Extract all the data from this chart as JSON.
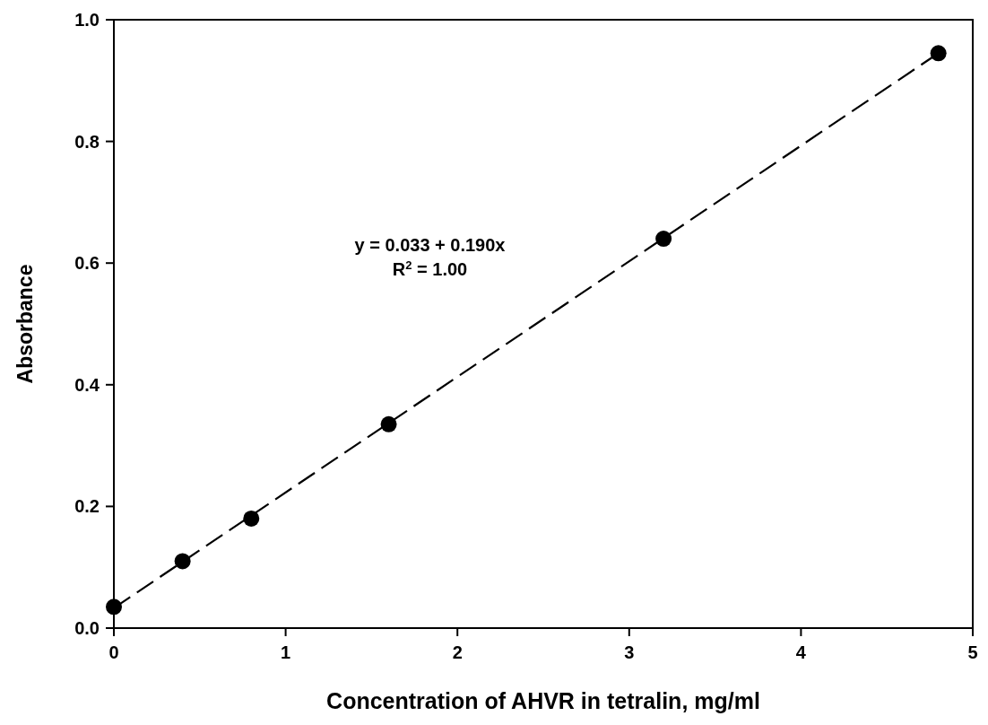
{
  "chart_data": {
    "type": "scatter",
    "xlabel": "Concentration of AHVR in tetralin, mg/ml",
    "ylabel": "Absorbance",
    "annotations": [
      "y = 0.033 + 0.190x",
      "R$^{2}$ = 1.00"
    ],
    "series": [
      {
        "color": "#000000",
        "marker": "circle",
        "x": [
          0,
          0.4,
          0.8,
          1.6,
          3.2,
          4.8
        ],
        "values": [
          0.035,
          0.11,
          0.18,
          0.335,
          0.64,
          0.945
        ]
      },
      {
        "type": "line",
        "color": "#000000",
        "line_style": "dashed",
        "marker": "none",
        "x": [
          0,
          4.8
        ],
        "values": [
          0.033,
          0.945
        ]
      }
    ],
    "xlim": [
      0,
      5
    ],
    "xticks": [
      0,
      1,
      2,
      3,
      4,
      5
    ],
    "ylim": [
      0,
      1
    ],
    "yticks": [
      {
        "value": 0,
        "label": "0.0"
      },
      {
        "value": 0.2,
        "label": "0.2"
      },
      {
        "value": 0.4,
        "label": "0.4"
      },
      {
        "value": 0.6,
        "label": "0.6"
      },
      {
        "value": 0.8,
        "label": "0.8"
      },
      {
        "value": 1,
        "label": "1.0"
      }
    ],
    "grid": false
  }
}
